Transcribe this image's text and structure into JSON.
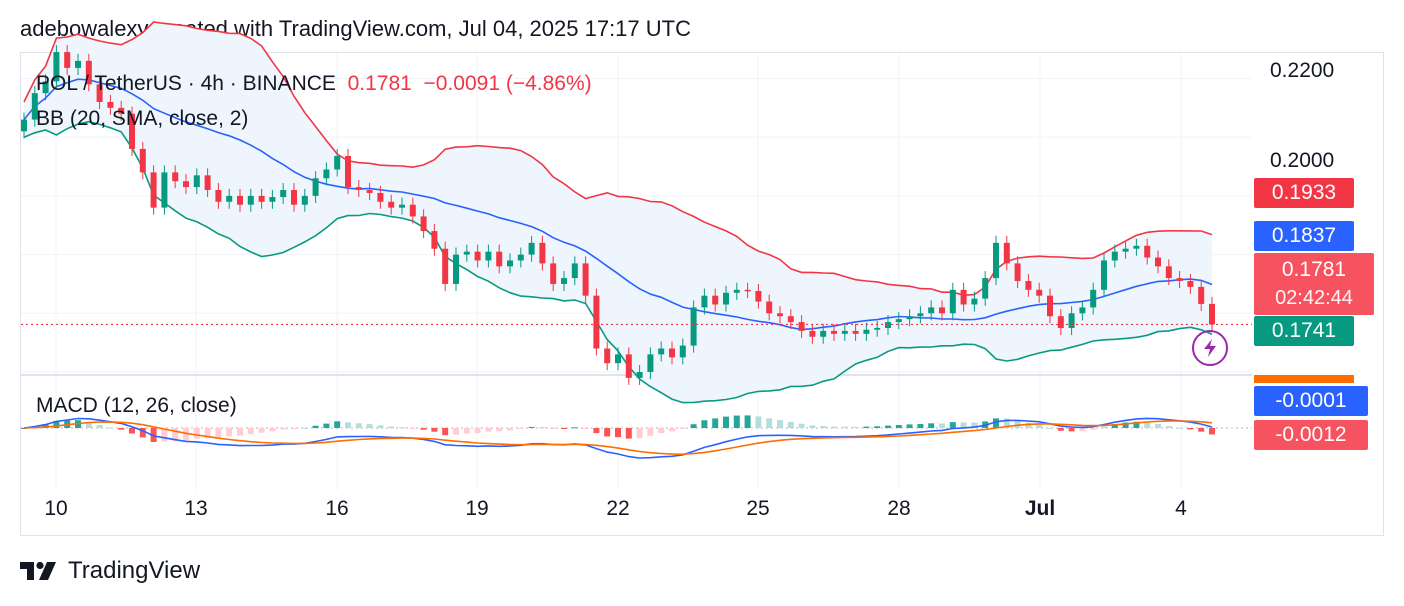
{
  "attribution": "adebowalexy created with TradingView.com, Jul 04, 2025 17:17 UTC",
  "legend": {
    "symbol": "POL / TetherUS · 4h · BINANCE",
    "last": "0.1781",
    "change": "−0.0091 (−4.86%)",
    "bb": "BB (20, SMA, close, 2)",
    "macd": "MACD (12, 26, close)"
  },
  "price_axis": [
    "0.2200",
    "0.2000"
  ],
  "time_axis": [
    "10",
    "13",
    "16",
    "19",
    "22",
    "25",
    "28",
    "Jul",
    "4"
  ],
  "tags": {
    "bb_upper": "0.1933",
    "bb_basis": "0.1837",
    "last": "0.1781",
    "countdown": "02:42:44",
    "bb_lower": "0.1741",
    "macd": "-0.0001",
    "signal": "-0.0012"
  },
  "brand": "TradingView",
  "colors": {
    "up": "#089981",
    "down": "#f23645",
    "bb_upper": "#f23645",
    "bb_basis": "#2962ff",
    "bb_lower": "#089981",
    "bb_fill": "#eef5fc",
    "macd_line": "#2962ff",
    "signal_line": "#ff6d00",
    "hist_pos_strong": "#26a69a",
    "hist_pos_weak": "#b2dfdb",
    "hist_neg_strong": "#ff5252",
    "hist_neg_weak": "#ffcdd2"
  },
  "chart_data": {
    "type": "candlestick",
    "symbol": "POL / TetherUS",
    "interval": "4h",
    "price_axis": {
      "ylim": [
        0.17,
        0.224
      ],
      "ticks": [
        0.22,
        0.2
      ]
    },
    "time_axis_labels": [
      "10",
      "13",
      "16",
      "19",
      "22",
      "25",
      "28",
      "Jul",
      "4"
    ],
    "last_price": 0.1781,
    "close": [
      0.213,
      0.2175,
      0.2195,
      0.2245,
      0.2218,
      0.223,
      0.219,
      0.216,
      0.215,
      0.214,
      0.208,
      0.204,
      0.198,
      0.204,
      0.2025,
      0.2015,
      0.2035,
      0.201,
      0.199,
      0.2,
      0.1985,
      0.2,
      0.199,
      0.1998,
      0.201,
      0.1985,
      0.2,
      0.203,
      0.2045,
      0.2068,
      0.2015,
      0.201,
      0.2005,
      0.199,
      0.198,
      0.1985,
      0.1965,
      0.194,
      0.191,
      0.185,
      0.19,
      0.1905,
      0.189,
      0.1905,
      0.188,
      0.189,
      0.19,
      0.192,
      0.1885,
      0.185,
      0.186,
      0.1885,
      0.183,
      0.174,
      0.1715,
      0.173,
      0.169,
      0.17,
      0.173,
      0.174,
      0.1725,
      0.1745,
      0.181,
      0.183,
      0.1815,
      0.1835,
      0.184,
      0.1838,
      0.182,
      0.18,
      0.1795,
      0.1785,
      0.177,
      0.176,
      0.177,
      0.1765,
      0.177,
      0.1765,
      0.1772,
      0.1775,
      0.1785,
      0.179,
      0.1795,
      0.18,
      0.181,
      0.18,
      0.184,
      0.1815,
      0.1825,
      0.186,
      0.192,
      0.1885,
      0.1855,
      0.184,
      0.183,
      0.1795,
      0.1775,
      0.18,
      0.181,
      0.184,
      0.189,
      0.1905,
      0.191,
      0.1915,
      0.1895,
      0.188,
      0.186,
      0.1855,
      0.1845,
      0.1816,
      0.1781
    ],
    "bollinger": {
      "period": 20,
      "type": "SMA",
      "source": "close",
      "mult": 2,
      "upper_last": 0.1933,
      "basis_last": 0.1837,
      "lower_last": 0.1741
    },
    "macd": {
      "fast": 12,
      "slow": 26,
      "source": "close",
      "macd_last": -0.0001,
      "signal_last": -0.0012
    }
  }
}
